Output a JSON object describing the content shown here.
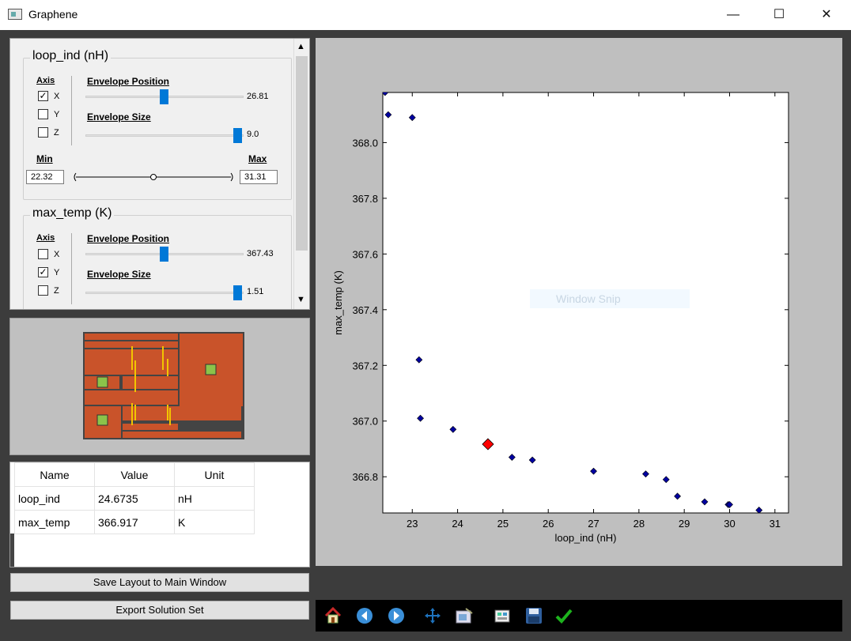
{
  "window": {
    "title": "Graphene",
    "minimize": "—",
    "maximize": "☐",
    "close": "✕"
  },
  "panels": [
    {
      "title": "loop_ind (nH)",
      "axis_label": "Axis",
      "axes": [
        {
          "label": "X",
          "checked": true
        },
        {
          "label": "Y",
          "checked": false
        },
        {
          "label": "Z",
          "checked": false
        }
      ],
      "position_label": "Envelope Position",
      "position_value": "26.81",
      "position_fraction": 0.5,
      "size_label": "Envelope Size",
      "size_value": "9.0",
      "size_fraction": 1.0,
      "min_label": "Min",
      "max_label": "Max",
      "min_value": "22.32",
      "max_value": "31.31"
    },
    {
      "title": "max_temp (K)",
      "axis_label": "Axis",
      "axes": [
        {
          "label": "X",
          "checked": false
        },
        {
          "label": "Y",
          "checked": true
        },
        {
          "label": "Z",
          "checked": false
        }
      ],
      "position_label": "Envelope Position",
      "position_value": "367.43",
      "position_fraction": 0.5,
      "size_label": "Envelope Size",
      "size_value": "1.51",
      "size_fraction": 1.0
    }
  ],
  "table": {
    "headers": [
      "Name",
      "Value",
      "Unit"
    ],
    "rows": [
      [
        "loop_ind",
        "24.6735",
        "nH"
      ],
      [
        "max_temp",
        "366.917",
        "K"
      ]
    ]
  },
  "buttons": {
    "save_layout": "Save Layout to Main Window",
    "export": "Export Solution Set"
  },
  "overlay": {
    "snip_text": "Window Snip"
  },
  "toolbar": {
    "icons": [
      "home-icon",
      "back-arrow-icon",
      "forward-arrow-icon",
      "pan-icon",
      "configure-subplots-icon",
      "edit-axes-icon",
      "save-icon",
      "checkmark-icon"
    ]
  },
  "colors": {
    "accent": "#0078d7",
    "layout_copper": "#c9532a",
    "marker": "#0000a0",
    "selected": "#ff0000",
    "pad": "#8bc34a"
  },
  "chart_data": {
    "type": "scatter",
    "xlabel": "loop_ind (nH)",
    "ylabel": "max_temp (K)",
    "xlim": [
      22.35,
      31.3
    ],
    "ylim": [
      366.67,
      368.18
    ],
    "xticks": [
      23,
      24,
      25,
      26,
      27,
      28,
      29,
      30,
      31
    ],
    "yticks": [
      366.8,
      367.0,
      367.2,
      367.4,
      367.6,
      367.8,
      368.0
    ],
    "ytick_labels": [
      "366.8",
      "367.0",
      "367.2",
      "367.4",
      "367.6",
      "367.8",
      "368.0"
    ],
    "points": [
      [
        22.4,
        368.18
      ],
      [
        22.47,
        368.1
      ],
      [
        23.0,
        368.09
      ],
      [
        23.15,
        367.22
      ],
      [
        23.18,
        367.01
      ],
      [
        23.9,
        366.97
      ],
      [
        25.2,
        366.87
      ],
      [
        25.65,
        366.86
      ],
      [
        27.0,
        366.82
      ],
      [
        28.15,
        366.81
      ],
      [
        28.6,
        366.79
      ],
      [
        28.85,
        366.73
      ],
      [
        29.45,
        366.71
      ],
      [
        29.97,
        366.7
      ],
      [
        30.0,
        366.7
      ],
      [
        30.65,
        366.68
      ]
    ],
    "selected": [
      24.67,
      366.917
    ]
  }
}
